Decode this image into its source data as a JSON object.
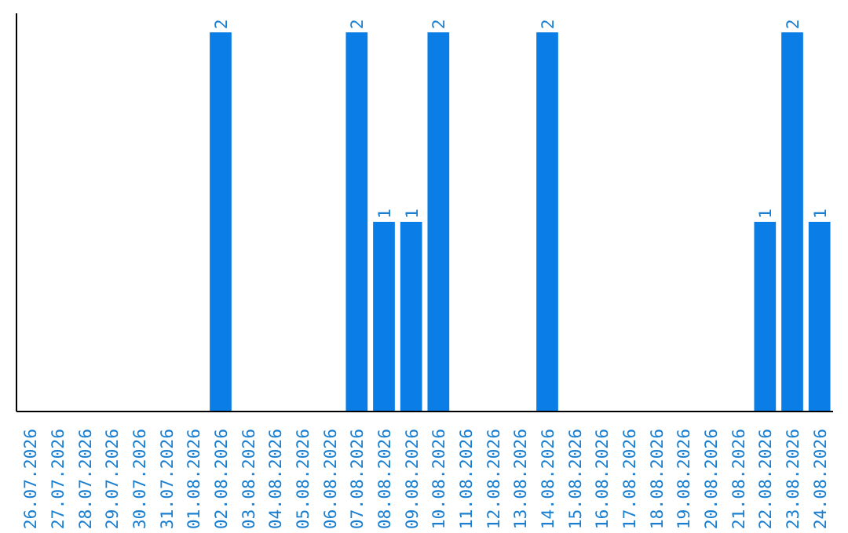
{
  "chart_data": {
    "type": "bar",
    "categories": [
      "26.07.2026",
      "27.07.2026",
      "28.07.2026",
      "29.07.2026",
      "30.07.2026",
      "31.07.2026",
      "01.08.2026",
      "02.08.2026",
      "03.08.2026",
      "04.08.2026",
      "05.08.2026",
      "06.08.2026",
      "07.08.2026",
      "08.08.2026",
      "09.08.2026",
      "10.08.2026",
      "11.08.2026",
      "12.08.2026",
      "13.08.2026",
      "14.08.2026",
      "15.08.2026",
      "16.08.2026",
      "17.08.2026",
      "18.08.2026",
      "19.08.2026",
      "20.08.2026",
      "21.08.2026",
      "22.08.2026",
      "23.08.2026",
      "24.08.2026"
    ],
    "values": [
      0,
      0,
      0,
      0,
      0,
      0,
      0,
      2,
      0,
      0,
      0,
      0,
      2,
      1,
      1,
      2,
      0,
      0,
      0,
      2,
      0,
      0,
      0,
      0,
      0,
      0,
      0,
      1,
      2,
      1
    ],
    "value_labels": [
      null,
      null,
      null,
      null,
      null,
      null,
      null,
      "2",
      null,
      null,
      null,
      null,
      "2",
      "1",
      "1",
      "2",
      null,
      null,
      null,
      "2",
      null,
      null,
      null,
      null,
      null,
      null,
      null,
      "1",
      "2",
      "1"
    ],
    "color": "#0a7ee6",
    "ylim": [
      0,
      2.1
    ],
    "tick_labels": "x",
    "grid": false
  }
}
